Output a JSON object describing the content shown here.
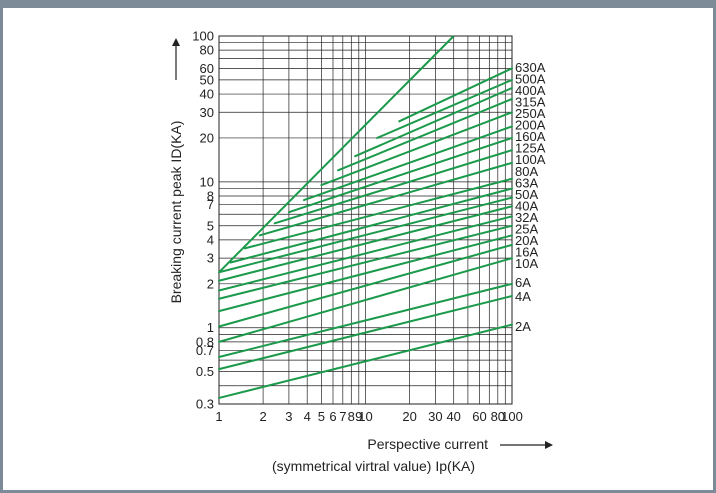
{
  "chart_data": {
    "type": "line",
    "xlabel_line1": "Perspective current",
    "xlabel_line2": "(symmetrical virtral value) Ip(KA)",
    "ylabel": "Breaking current peak ID(KA)",
    "x_scale": "log",
    "y_scale": "log",
    "xlim": [
      1,
      100
    ],
    "ylim": [
      0.3,
      100
    ],
    "grid": true,
    "x_tick_values": [
      1,
      2,
      3,
      4,
      5,
      6,
      7,
      8,
      9,
      10,
      20,
      30,
      40,
      60,
      80,
      100
    ],
    "x_tick_labels": [
      "1",
      "2",
      "3",
      "4",
      "5",
      "6",
      "7",
      "8",
      "9",
      "10",
      "20",
      "30",
      "40",
      "60",
      "80",
      "100"
    ],
    "y_tick_values": [
      0.3,
      0.5,
      0.7,
      0.8,
      1,
      2,
      3,
      4,
      5,
      7,
      8,
      10,
      20,
      30,
      40,
      50,
      60,
      80,
      100
    ],
    "y_tick_labels": [
      "0.3",
      "0.5",
      "0.7",
      "0.8",
      "1",
      "2",
      "3",
      "4",
      "5",
      "7",
      "8",
      "10",
      "20",
      "30",
      "40",
      "50",
      "60",
      "80",
      "100"
    ],
    "line_color": "#1a9a4a",
    "envelope": {
      "x": [
        1,
        40
      ],
      "y": [
        2.4,
        100
      ]
    },
    "series": [
      {
        "name": "2A",
        "x": [
          1,
          100
        ],
        "y": [
          0.33,
          1.05
        ]
      },
      {
        "name": "4A",
        "x": [
          1,
          100
        ],
        "y": [
          0.52,
          1.65
        ]
      },
      {
        "name": "6A",
        "x": [
          1,
          100
        ],
        "y": [
          0.63,
          2.0
        ]
      },
      {
        "name": "10A",
        "x": [
          1,
          100
        ],
        "y": [
          0.8,
          3.0
        ]
      },
      {
        "name": "16A",
        "x": [
          1,
          100
        ],
        "y": [
          1.02,
          3.7
        ]
      },
      {
        "name": "20A",
        "x": [
          1,
          100
        ],
        "y": [
          1.3,
          4.3
        ]
      },
      {
        "name": "25A",
        "x": [
          1,
          100
        ],
        "y": [
          1.58,
          5.0
        ]
      },
      {
        "name": "32A",
        "x": [
          1,
          100
        ],
        "y": [
          1.8,
          5.8
        ]
      },
      {
        "name": "40A",
        "x": [
          1,
          100
        ],
        "y": [
          2.1,
          6.8
        ]
      },
      {
        "name": "50A",
        "x": [
          1,
          100
        ],
        "y": [
          2.4,
          7.8
        ]
      },
      {
        "name": "63A",
        "x": [
          1.2,
          100
        ],
        "y": [
          2.8,
          9.0
        ]
      },
      {
        "name": "80A",
        "x": [
          1.5,
          100
        ],
        "y": [
          3.5,
          10.5
        ]
      },
      {
        "name": "100A",
        "x": [
          1.9,
          100
        ],
        "y": [
          4.3,
          13.5
        ]
      },
      {
        "name": "125A",
        "x": [
          2.4,
          100
        ],
        "y": [
          5.2,
          16.5
        ]
      },
      {
        "name": "160A",
        "x": [
          3,
          100
        ],
        "y": [
          6.2,
          20
        ]
      },
      {
        "name": "200A",
        "x": [
          3.8,
          100
        ],
        "y": [
          7.5,
          24
        ]
      },
      {
        "name": "250A",
        "x": [
          5,
          100
        ],
        "y": [
          9.5,
          30
        ]
      },
      {
        "name": "315A",
        "x": [
          6.5,
          100
        ],
        "y": [
          12,
          37
        ]
      },
      {
        "name": "400A",
        "x": [
          8.5,
          100
        ],
        "y": [
          15,
          44
        ]
      },
      {
        "name": "500A",
        "x": [
          12,
          100
        ],
        "y": [
          20,
          50
        ]
      },
      {
        "name": "630A",
        "x": [
          17,
          100
        ],
        "y": [
          26,
          60
        ]
      }
    ]
  }
}
